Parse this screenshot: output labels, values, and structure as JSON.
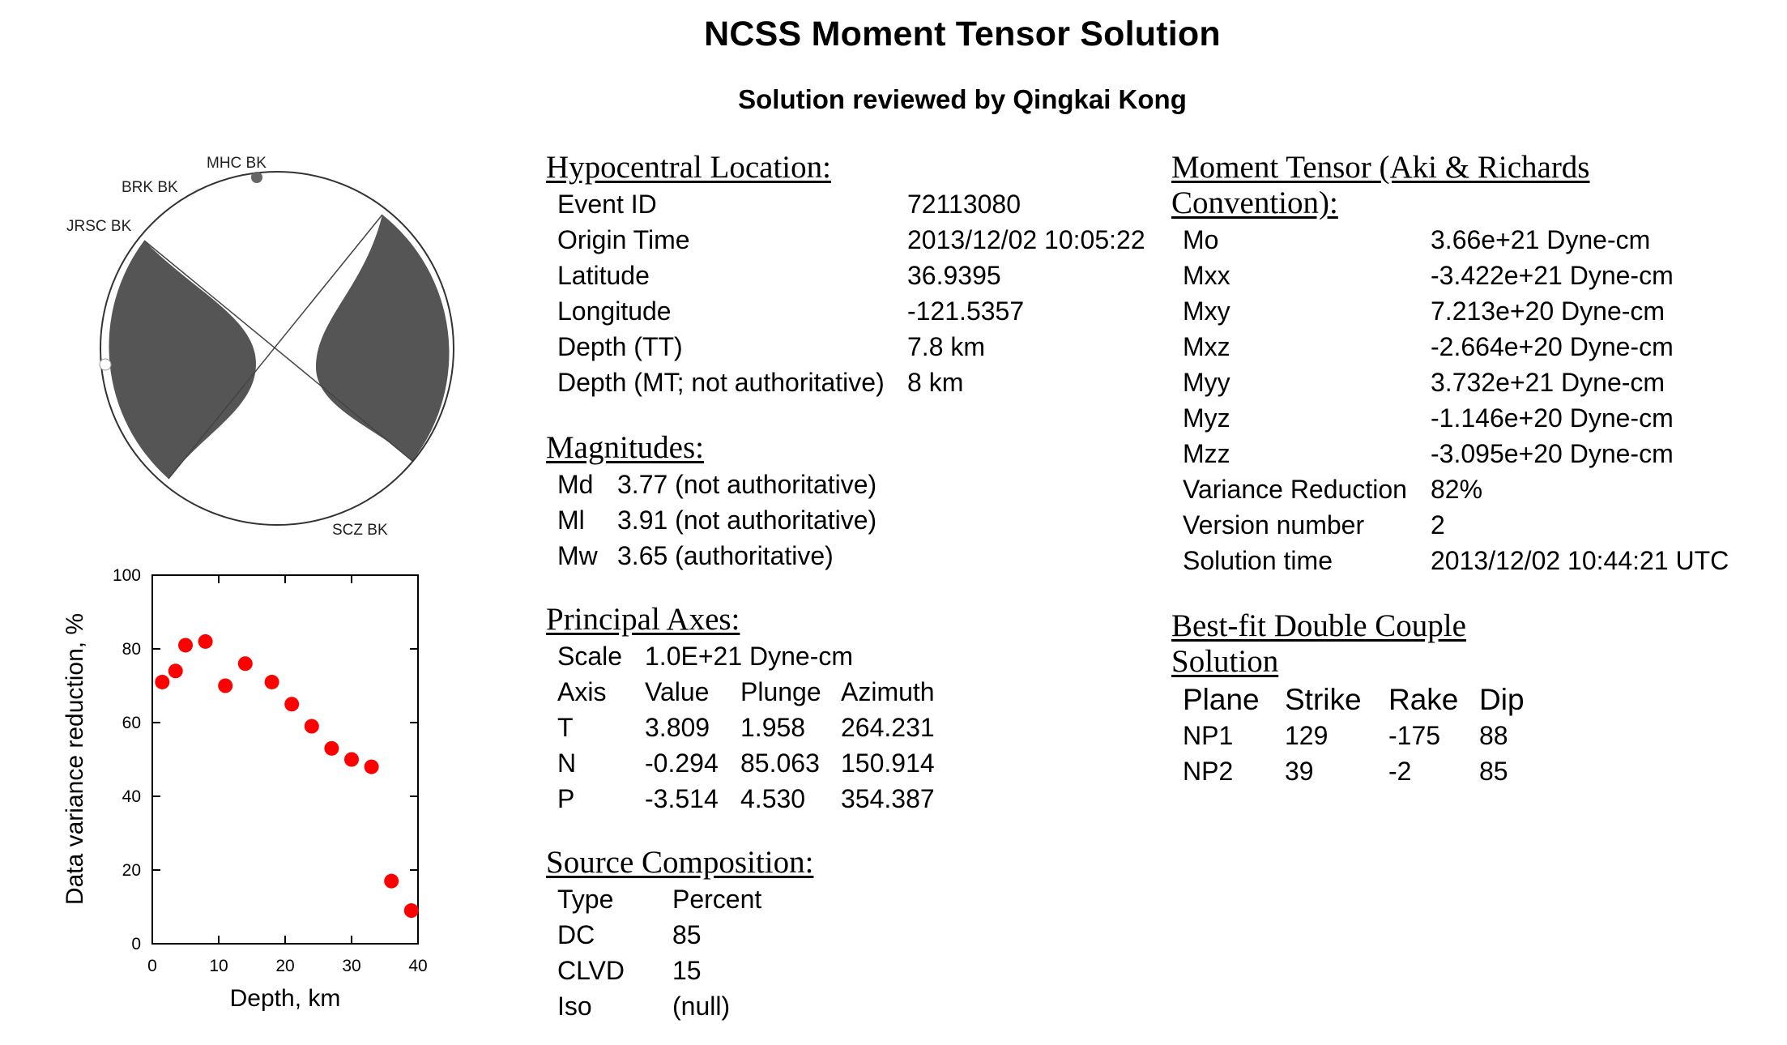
{
  "header": {
    "title": "NCSS Moment Tensor Solution",
    "subtitle": "Solution reviewed by Qingkai Kong"
  },
  "beachball": {
    "stations": [
      "MHC BK",
      "BRK BK",
      "JRSC BK",
      "SCZ BK"
    ],
    "colors": {
      "compressional": "#555555",
      "dilatational": "#ffffff",
      "outline": "#333333",
      "station_dot": "#666666"
    }
  },
  "hypocenter": {
    "heading": "Hypocentral Location:",
    "rows": [
      {
        "label": "Event ID",
        "value": "72113080"
      },
      {
        "label": "Origin Time",
        "value": "2013/12/02 10:05:22"
      },
      {
        "label": "Latitude",
        "value": "36.9395"
      },
      {
        "label": "Longitude",
        "value": "-121.5357"
      },
      {
        "label": "Depth (TT)",
        "value": "7.8 km"
      },
      {
        "label": "Depth (MT; not authoritative)",
        "value": "8 km"
      }
    ]
  },
  "magnitudes": {
    "heading": "Magnitudes:",
    "rows": [
      {
        "label": "Md",
        "value": "3.77 (not authoritative)"
      },
      {
        "label": "Ml",
        "value": "3.91 (not authoritative)"
      },
      {
        "label": "Mw",
        "value": "3.65 (authoritative)"
      }
    ]
  },
  "principal_axes": {
    "heading": "Principal Axes:",
    "scale_label": "Scale",
    "scale_value": "1.0E+21 Dyne-cm",
    "columns": [
      "Axis",
      "Value",
      "Plunge",
      "Azimuth"
    ],
    "rows": [
      [
        "T",
        "3.809",
        "1.958",
        "264.231"
      ],
      [
        "N",
        "-0.294",
        "85.063",
        "150.914"
      ],
      [
        "P",
        "-3.514",
        "4.530",
        "354.387"
      ]
    ]
  },
  "source_composition": {
    "heading": "Source Composition:",
    "columns": [
      "Type",
      "Percent"
    ],
    "rows": [
      [
        "DC",
        "85"
      ],
      [
        "CLVD",
        "15"
      ],
      [
        "Iso",
        "(null)"
      ]
    ]
  },
  "moment_tensor": {
    "heading_line1": "Moment Tensor (Aki & Richards",
    "heading_line2": "Convention):",
    "rows": [
      {
        "label": "Mo",
        "value": "3.66e+21 Dyne-cm"
      },
      {
        "label": "Mxx",
        "value": "-3.422e+21 Dyne-cm"
      },
      {
        "label": "Mxy",
        "value": "7.213e+20 Dyne-cm"
      },
      {
        "label": "Mxz",
        "value": "-2.664e+20 Dyne-cm"
      },
      {
        "label": "Myy",
        "value": "3.732e+21 Dyne-cm"
      },
      {
        "label": "Myz",
        "value": "-1.146e+20 Dyne-cm"
      },
      {
        "label": "Mzz",
        "value": "-3.095e+20 Dyne-cm"
      },
      {
        "label": "Variance Reduction",
        "value": "82%"
      },
      {
        "label": "Version number",
        "value": "2"
      },
      {
        "label": "Solution time",
        "value": "2013/12/02 10:44:21 UTC"
      }
    ]
  },
  "double_couple": {
    "heading_line1": "Best-fit Double Couple",
    "heading_line2": "Solution",
    "columns": [
      "Plane",
      "Strike",
      "Rake",
      "Dip"
    ],
    "rows": [
      [
        "NP1",
        "129",
        "-175",
        "88"
      ],
      [
        "NP2",
        "39",
        "-2",
        "85"
      ]
    ]
  },
  "chart_data": {
    "type": "scatter",
    "xlabel": "Depth, km",
    "ylabel": "Data variance reduction, %",
    "xlim": [
      0,
      40
    ],
    "ylim": [
      0,
      100
    ],
    "xticks": [
      0,
      10,
      20,
      30,
      40
    ],
    "yticks": [
      0,
      20,
      40,
      60,
      80,
      100
    ],
    "marker_color": "#ff0000",
    "x": [
      1.5,
      3.5,
      5,
      8,
      11,
      14,
      18,
      21,
      24,
      27,
      30,
      33,
      36,
      39
    ],
    "y": [
      71,
      74,
      81,
      82,
      70,
      76,
      71,
      65,
      59,
      53,
      50,
      48,
      17,
      9
    ]
  }
}
